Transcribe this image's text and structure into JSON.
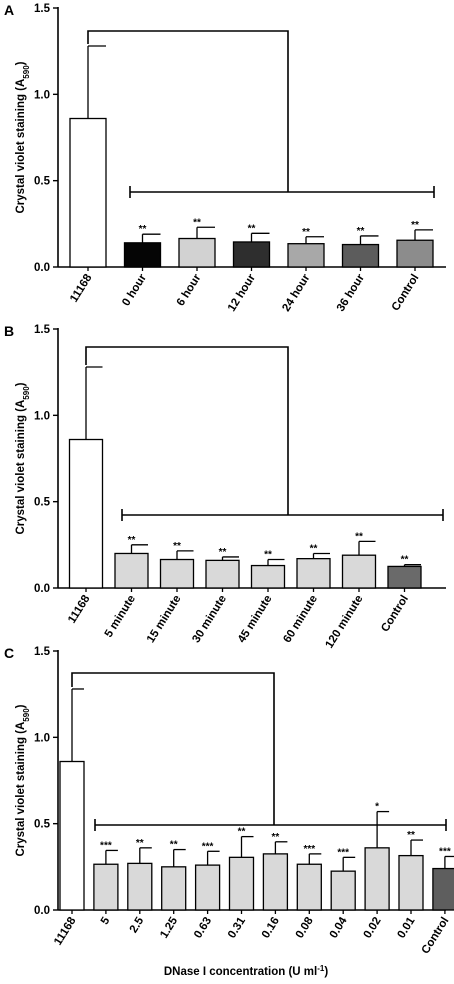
{
  "chart_data": [
    {
      "type": "bar",
      "panel_label": "A",
      "ylabel": "Crystal violet staining (A590)",
      "ylabel_main": "Crystal violet staining (A",
      "ylabel_sub": "590",
      "ylabel_close": ")",
      "xlabel": "",
      "ylim": [
        0,
        1.5
      ],
      "yticks": [
        "0.0",
        "0.5",
        "1.0",
        "1.5"
      ],
      "categories": [
        "11168",
        "0 hour",
        "6 hour",
        "12 hour",
        "24 hour",
        "36 hour",
        "Control"
      ],
      "values": [
        0.86,
        0.14,
        0.165,
        0.145,
        0.135,
        0.13,
        0.155
      ],
      "errors": [
        0.42,
        0.05,
        0.065,
        0.05,
        0.04,
        0.05,
        0.06
      ],
      "significance": [
        "",
        "**",
        "**",
        "**",
        "**",
        "**",
        "**"
      ],
      "bar_colors": [
        "#ffffff",
        "#050505",
        "#d2d2d2",
        "#2e2e2e",
        "#a8a8a8",
        "#5c5c5c",
        "#8c8c8c"
      ],
      "grid": false,
      "legend": "none"
    },
    {
      "type": "bar",
      "panel_label": "B",
      "ylabel": "Crystal violet staining (A590)",
      "ylabel_main": "Crystal violet staining (A",
      "ylabel_sub": "590",
      "ylabel_close": ")",
      "xlabel": "",
      "ylim": [
        0,
        1.5
      ],
      "yticks": [
        "0.0",
        "0.5",
        "1.0",
        "1.5"
      ],
      "categories": [
        "11168",
        "5 minute",
        "15 minute",
        "30 minute",
        "45 minute",
        "60 minute",
        "120 minute",
        "Control"
      ],
      "values": [
        0.86,
        0.2,
        0.165,
        0.16,
        0.13,
        0.17,
        0.19,
        0.125
      ],
      "errors": [
        0.42,
        0.05,
        0.05,
        0.02,
        0.035,
        0.03,
        0.08,
        0.01
      ],
      "significance": [
        "",
        "**",
        "**",
        "**",
        "**",
        "**",
        "**",
        "**"
      ],
      "bar_colors": [
        "#ffffff",
        "#d9d9d9",
        "#d9d9d9",
        "#d9d9d9",
        "#d9d9d9",
        "#d9d9d9",
        "#d9d9d9",
        "#6a6a6a"
      ],
      "grid": false,
      "legend": "none"
    },
    {
      "type": "bar",
      "panel_label": "C",
      "ylabel": "Crystal violet staining (A590)",
      "ylabel_main": "Crystal violet staining (A",
      "ylabel_sub": "590",
      "ylabel_close": ")",
      "xlabel": "DNase I concentration (U ml-1)",
      "xlabel_main": "DNase I concentration (U ml",
      "xlabel_sup": "-1",
      "xlabel_close": ")",
      "ylim": [
        0,
        1.5
      ],
      "yticks": [
        "0.0",
        "0.5",
        "1.0",
        "1.5"
      ],
      "categories": [
        "11168",
        "5",
        "2.5",
        "1.25",
        "0.63",
        "0.31",
        "0.16",
        "0.08",
        "0.04",
        "0.02",
        "0.01",
        "Control"
      ],
      "values": [
        0.86,
        0.265,
        0.27,
        0.25,
        0.26,
        0.305,
        0.325,
        0.265,
        0.225,
        0.36,
        0.315,
        0.24
      ],
      "errors": [
        0.42,
        0.08,
        0.09,
        0.1,
        0.08,
        0.12,
        0.07,
        0.06,
        0.08,
        0.21,
        0.09,
        0.07
      ],
      "significance": [
        "",
        "***",
        "**",
        "**",
        "***",
        "**",
        "**",
        "***",
        "***",
        "*",
        "**",
        "***"
      ],
      "bar_colors": [
        "#ffffff",
        "#d9d9d9",
        "#d9d9d9",
        "#d9d9d9",
        "#d9d9d9",
        "#d9d9d9",
        "#d9d9d9",
        "#d9d9d9",
        "#d9d9d9",
        "#d9d9d9",
        "#d9d9d9",
        "#5e5e5e"
      ],
      "grid": false,
      "legend": "none"
    }
  ]
}
